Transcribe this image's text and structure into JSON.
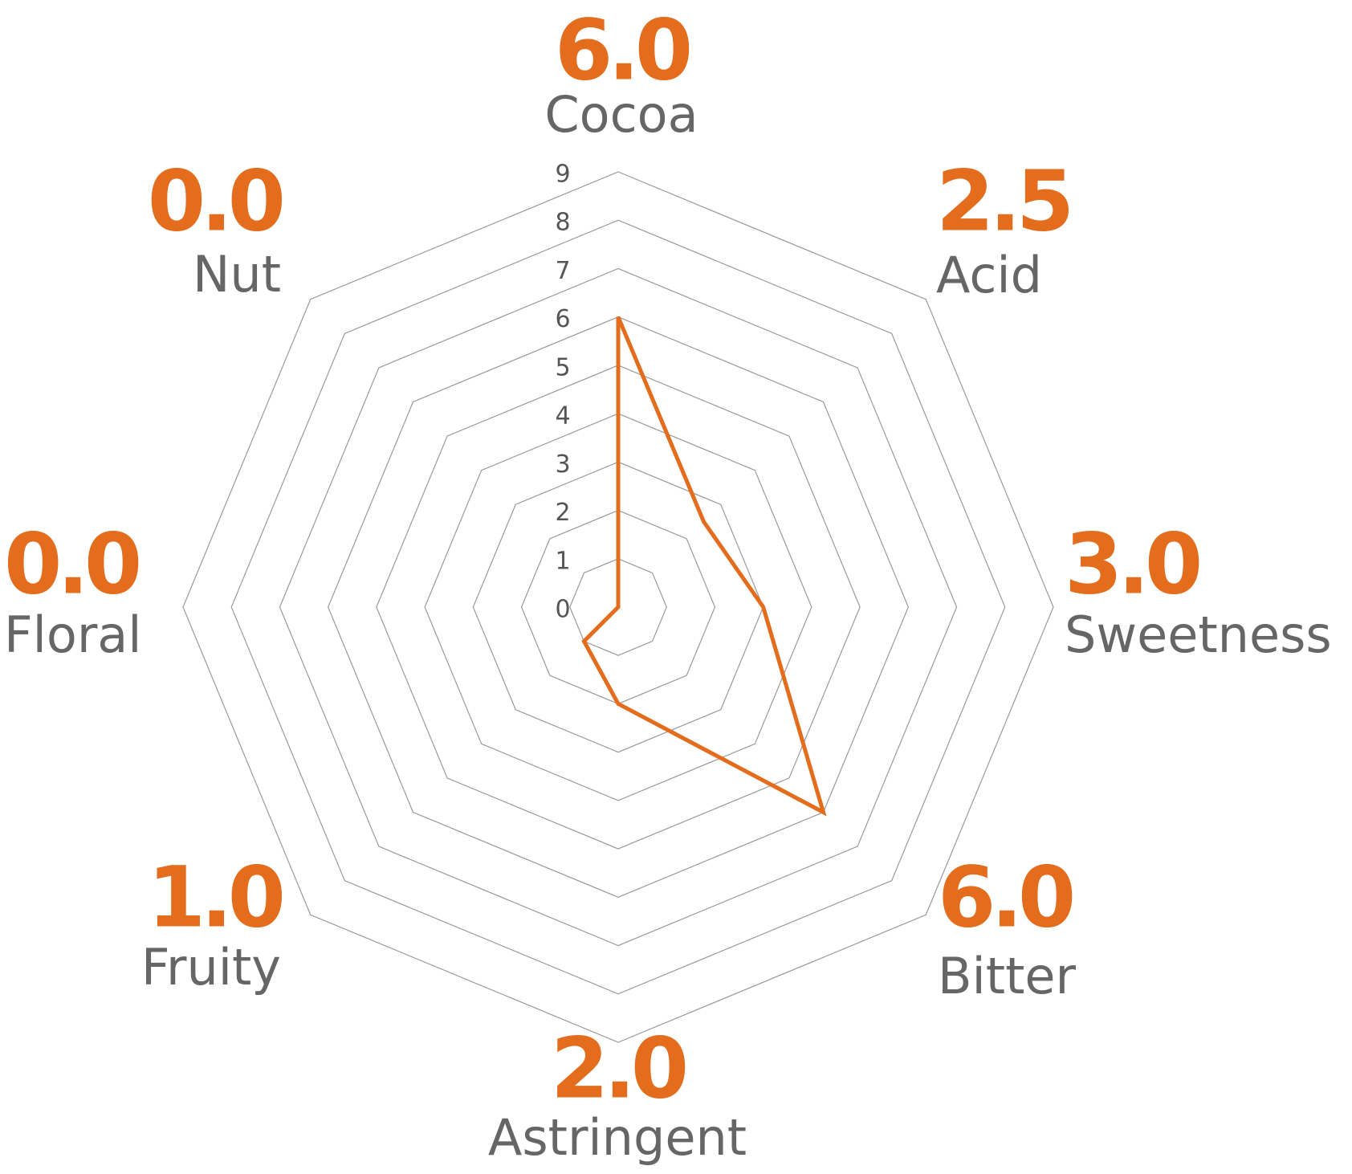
{
  "chart_data": {
    "type": "radar",
    "categories": [
      "Cocoa",
      "Acid",
      "Sweetness",
      "Bitter",
      "Astringent",
      "Fruity",
      "Floral",
      "Nut"
    ],
    "values": [
      6.0,
      2.5,
      3.0,
      6.0,
      2.0,
      1.0,
      0.0,
      0.0
    ],
    "value_labels": [
      "6.0",
      "2.5",
      "3.0",
      "6.0",
      "2.0",
      "1.0",
      "0.0",
      "0.0"
    ],
    "rlim": [
      0,
      9
    ],
    "rticks": [
      0,
      1,
      2,
      3,
      4,
      5,
      6,
      7,
      8,
      9
    ],
    "color": "#e36c1d"
  }
}
